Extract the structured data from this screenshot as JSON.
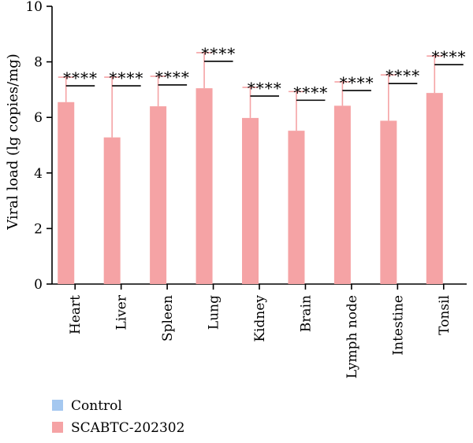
{
  "chart_data": {
    "type": "bar",
    "title": "",
    "ylabel": "Viral load (lg copies/mg)",
    "xlabel": "",
    "ylim": [
      0,
      10
    ],
    "yticks": [
      0,
      2,
      4,
      6,
      8,
      10
    ],
    "categories": [
      "Heart",
      "Liver",
      "Spleen",
      "Lung",
      "Kidney",
      "Brain",
      "Lymph node",
      "Intestine",
      "Tonsil"
    ],
    "series": [
      {
        "name": "Control",
        "color": "#a5c8f0",
        "values": [
          0,
          0,
          0,
          0,
          0,
          0,
          0,
          0,
          0
        ],
        "errors": [
          0,
          0,
          0,
          0,
          0,
          0,
          0,
          0,
          0
        ]
      },
      {
        "name": "SCABTC-202302",
        "color": "#f5a3a5",
        "values": [
          6.55,
          5.28,
          6.4,
          7.05,
          5.98,
          5.52,
          6.42,
          5.88,
          6.88
        ],
        "errors": [
          0.9,
          2.17,
          1.08,
          1.28,
          1.1,
          1.41,
          0.86,
          1.65,
          1.33
        ]
      }
    ],
    "significance": [
      "****",
      "****",
      "****",
      "****",
      "****",
      "****",
      "****",
      "****",
      "****"
    ],
    "grid": false,
    "legend_position": "bottom-left"
  }
}
